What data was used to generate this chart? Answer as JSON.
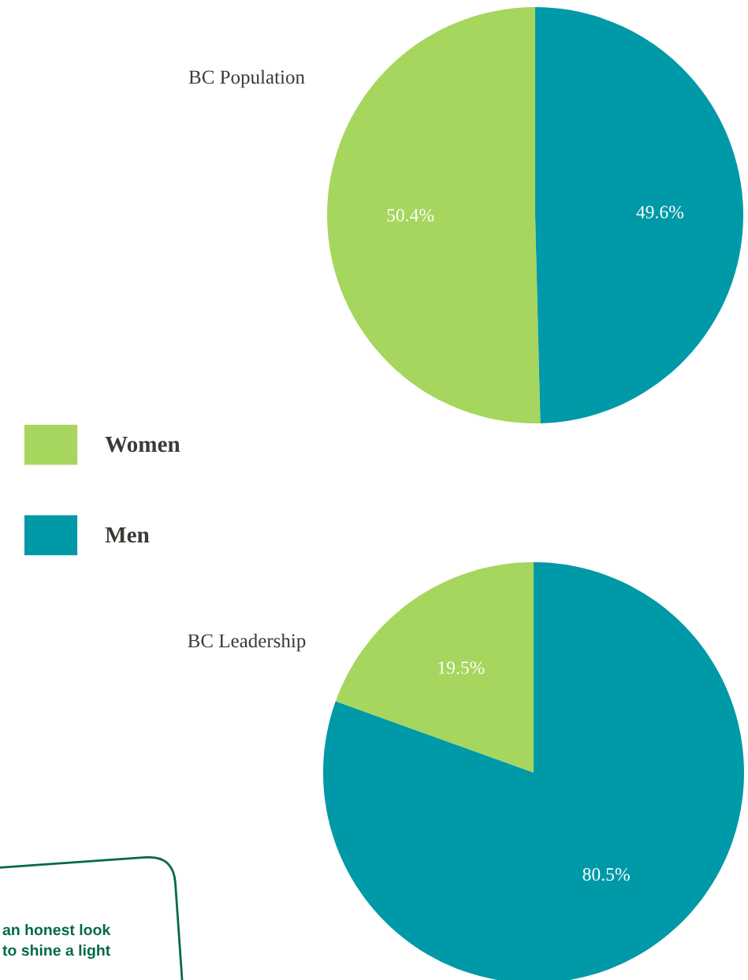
{
  "chart_data": [
    {
      "type": "pie",
      "title": "BC Population",
      "categories": [
        "Women",
        "Men"
      ],
      "values": [
        50.4,
        49.6
      ],
      "colors": [
        "#a6d65d",
        "#0099a8"
      ],
      "value_labels": [
        "50.4%",
        "49.6%"
      ],
      "legend": "left"
    },
    {
      "type": "pie",
      "title": "BC Leadership",
      "categories": [
        null,
        null
      ],
      "values": [
        19.5,
        80.5
      ],
      "colors": [
        "#a6d65d",
        "#0099a8"
      ],
      "value_labels": [
        "19.5%",
        "80.5%"
      ],
      "annotations": [
        "an honest look",
        "to shine a light"
      ]
    }
  ]
}
